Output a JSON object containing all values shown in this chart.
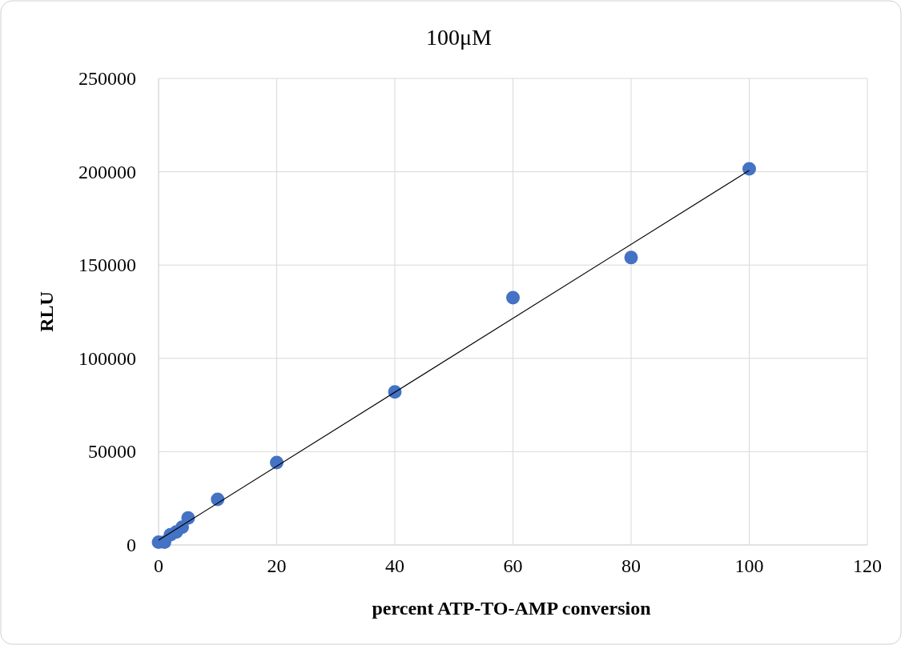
{
  "chart_data": {
    "type": "scatter",
    "title": "100μM",
    "xlabel": "percent ATP-TO-AMP conversion",
    "ylabel": "RLU",
    "xlim": [
      0,
      120
    ],
    "xticks": [
      0,
      20,
      40,
      60,
      80,
      100,
      120
    ],
    "ylim": [
      0,
      250000
    ],
    "yticks": [
      0,
      50000,
      100000,
      150000,
      200000,
      250000
    ],
    "grid": true,
    "marker": "circle",
    "series": [
      {
        "color": "#4472c4",
        "x": [
          0,
          1,
          2,
          3,
          4,
          5,
          10,
          20,
          40,
          60,
          80,
          100
        ],
        "values": [
          1500,
          1500,
          5500,
          7000,
          9500,
          14500,
          24400,
          44200,
          82000,
          132500,
          154000,
          201500
        ]
      },
      {
        "type": "line",
        "color": "#000000",
        "marker": "none",
        "x": [
          0,
          100
        ],
        "values": [
          2600,
          200700
        ]
      }
    ]
  }
}
